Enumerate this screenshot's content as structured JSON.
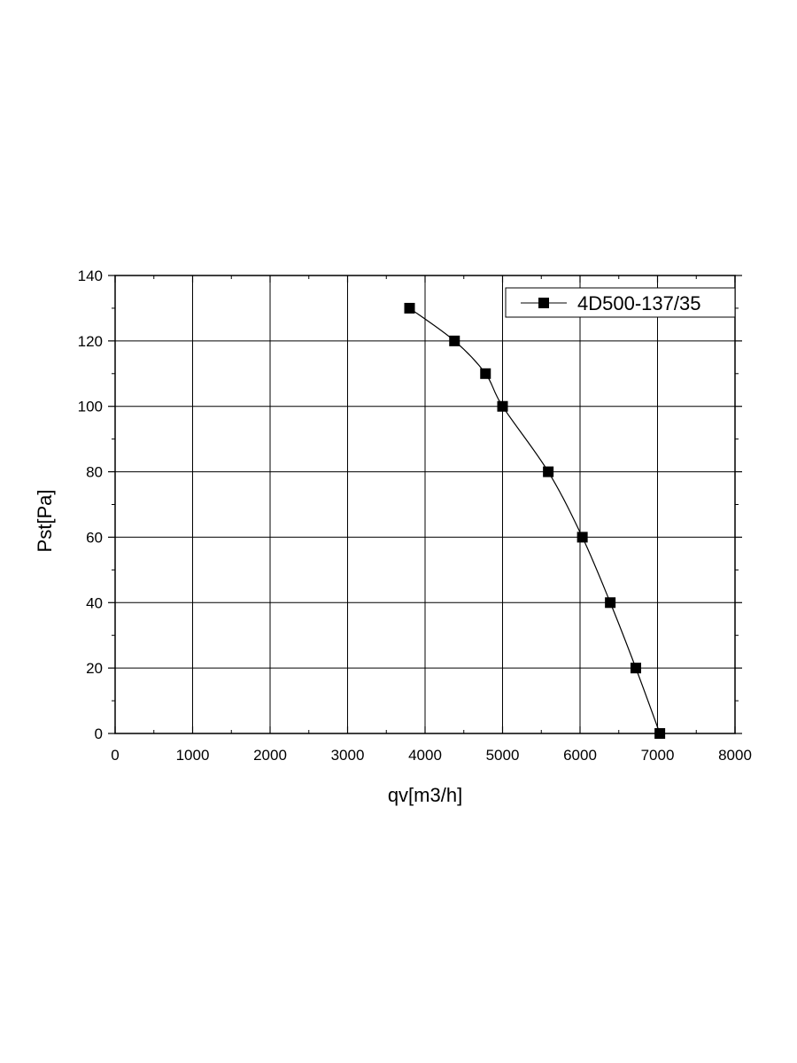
{
  "chart_data": {
    "type": "line",
    "xlabel": "qv[m3/h]",
    "ylabel": "Pst[Pa]",
    "xlim": [
      0,
      8000
    ],
    "ylim": [
      0,
      140
    ],
    "x_ticks": [
      0,
      1000,
      2000,
      3000,
      4000,
      5000,
      6000,
      7000,
      8000
    ],
    "y_ticks": [
      0,
      20,
      40,
      60,
      80,
      100,
      120,
      140
    ],
    "grid": true,
    "legend_position": "top-right",
    "series": [
      {
        "name": "4D500-137/35",
        "marker": "square",
        "color": "#000000",
        "x": [
          3800,
          4380,
          4780,
          5000,
          5590,
          6030,
          6390,
          6720,
          7030
        ],
        "y": [
          130,
          120,
          110,
          100,
          80,
          60,
          40,
          20,
          0
        ]
      }
    ]
  }
}
